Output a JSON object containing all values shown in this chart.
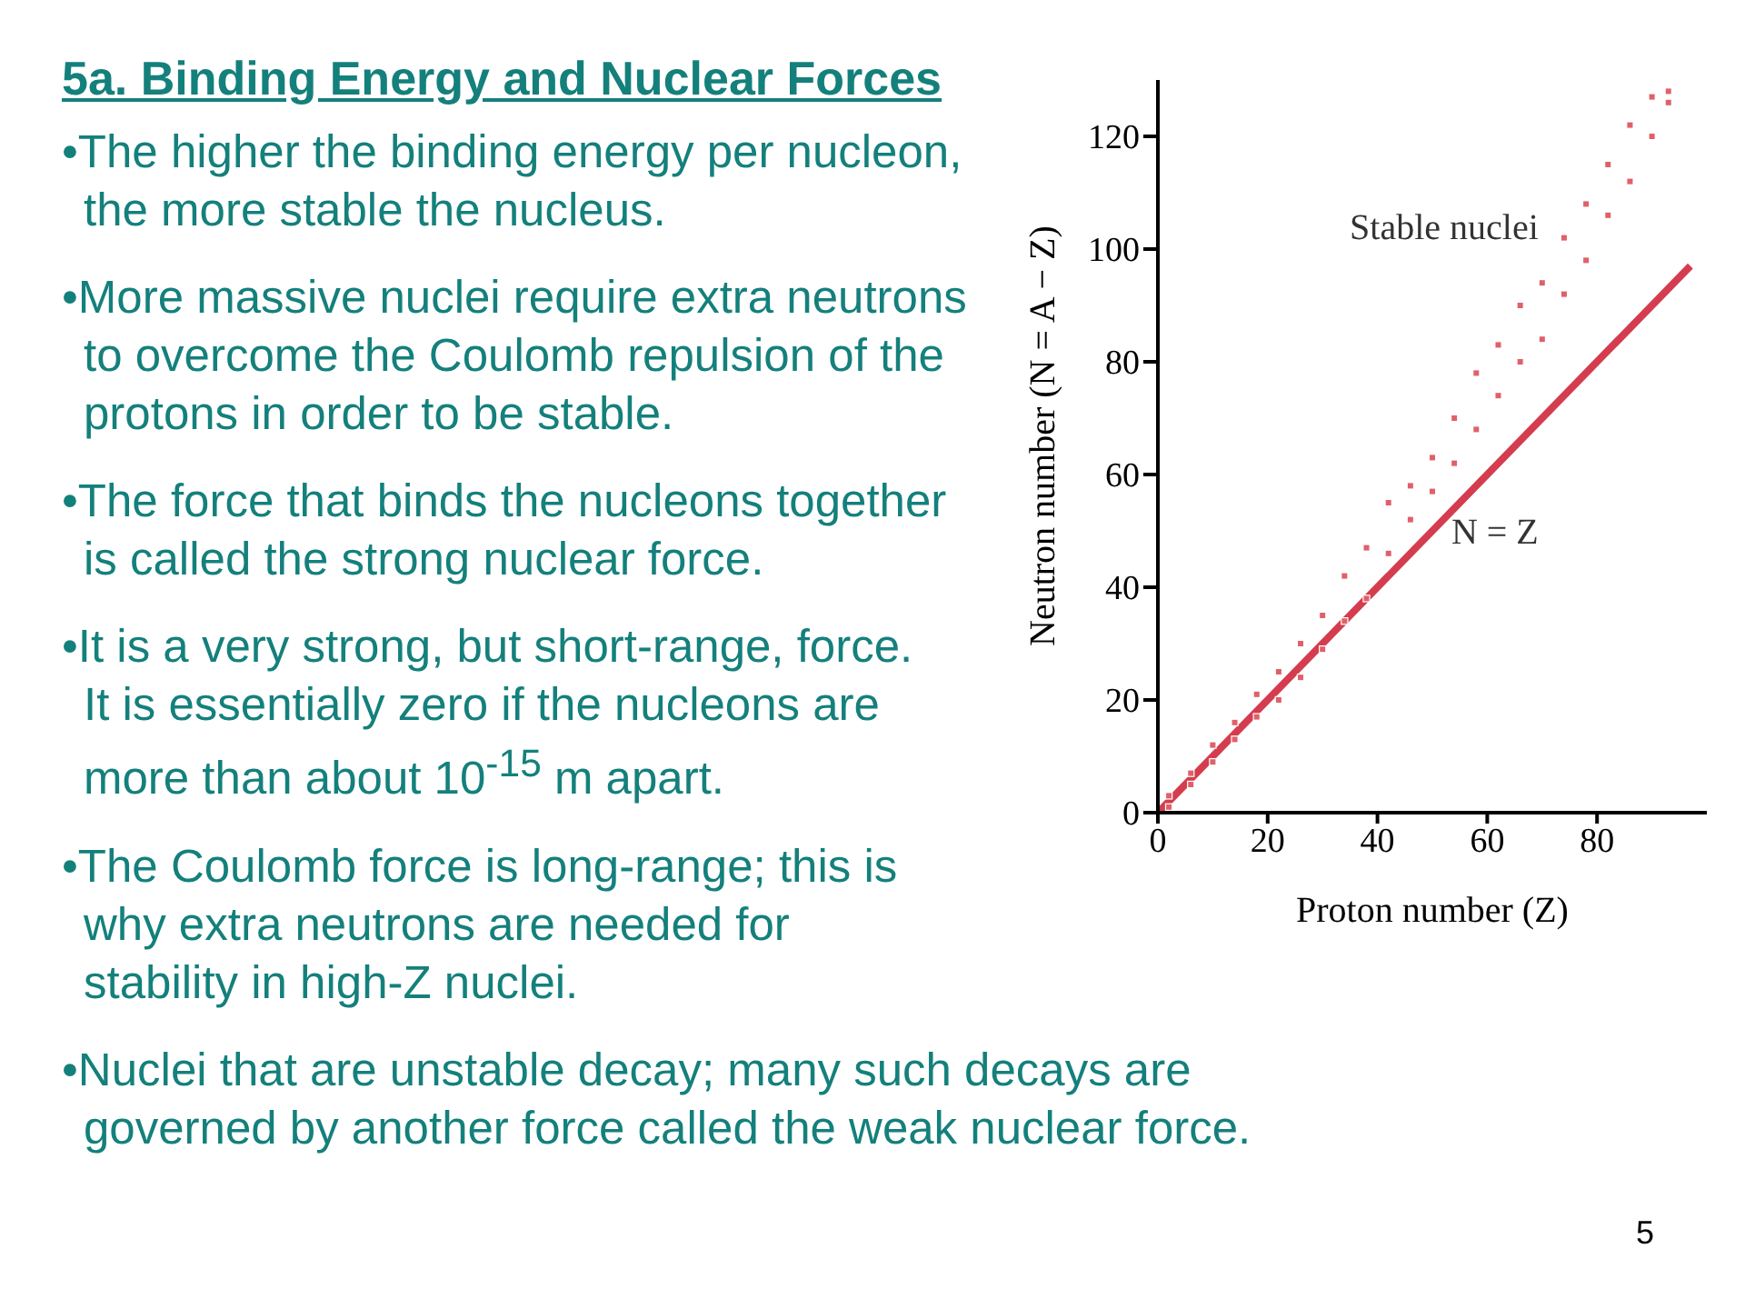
{
  "chart_data": {
    "type": "scatter",
    "title": "5a. Binding Energy and Nuclear Forces",
    "annotations": [
      "•The higher the binding energy per nucleon,\nthe more stable the nucleus.",
      "•More massive nuclei require extra neutrons\nto overcome the Coulomb repulsion of the\nprotons in order to be stable.",
      "•The force that binds the nucleons together\nis called the strong nuclear force.",
      "•It is a very strong, but short-range, force.\nIt is essentially zero if the nucleons are\nmore than about 10$^{-15}$ m apart.",
      "•The Coulomb force is long-range; this is\nwhy extra neutrons are needed for\nstability in high-Z nuclei.",
      "•Nuclei that are unstable decay; many such decays are\ngoverned by another force called the weak nuclear force.",
      "5"
    ],
    "xlabel": "Proton number (Z)",
    "ylabel": "Neutron number (N = A − Z)",
    "xlim": [
      0,
      100
    ],
    "xticks": [
      0,
      20,
      40,
      60,
      80
    ],
    "ylim": [
      0,
      130
    ],
    "yticks": [
      0,
      20,
      40,
      60,
      80,
      100,
      120
    ],
    "grid": false,
    "legend": false,
    "series": [
      {
        "name": "Stable nuclei",
        "marker": "square",
        "color": "#e0606a",
        "x": [
          2,
          2,
          6,
          6,
          10,
          10,
          14,
          14,
          18,
          18,
          22,
          22,
          26,
          26,
          30,
          30,
          34,
          34,
          38,
          38,
          42,
          42,
          46,
          46,
          50,
          50,
          54,
          54,
          58,
          58,
          62,
          62,
          66,
          66,
          70,
          70,
          74,
          74,
          78,
          78,
          82,
          82,
          86,
          86,
          90,
          90,
          93,
          93
        ],
        "values": [
          1,
          3,
          5,
          7,
          9,
          12,
          13,
          16,
          17,
          21,
          20,
          25,
          24,
          30,
          29,
          35,
          34,
          42,
          38,
          47,
          46,
          55,
          52,
          58,
          57,
          63,
          62,
          70,
          68,
          78,
          74,
          83,
          80,
          90,
          84,
          94,
          92,
          102,
          98,
          108,
          106,
          115,
          112,
          122,
          120,
          127,
          126,
          128
        ]
      },
      {
        "name": "N = Z",
        "type": "line",
        "color": "#d43d4f",
        "x": [
          0,
          97
        ],
        "values": [
          0,
          97
        ]
      }
    ]
  }
}
